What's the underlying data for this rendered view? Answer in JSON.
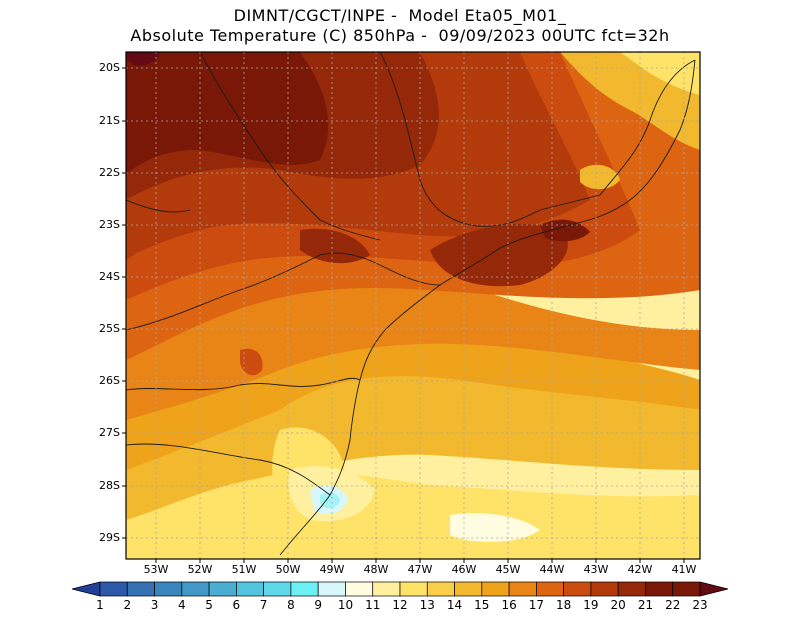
{
  "title": {
    "line1": "DIMNT/CGCT/INPE -  Model Eta05_M01_",
    "line2": "Absolute Temperature (C) 850hPa -  09/09/2023 00UTC fct=32h"
  },
  "map": {
    "lat_labels": [
      "20S",
      "21S",
      "22S",
      "23S",
      "24S",
      "25S",
      "26S",
      "27S",
      "28S",
      "29S"
    ],
    "lon_labels": [
      "53W",
      "52W",
      "51W",
      "50W",
      "49W",
      "48W",
      "47W",
      "46W",
      "45W",
      "44W",
      "43W",
      "42W",
      "41W"
    ]
  },
  "colorbar": {
    "labels": [
      "1",
      "2",
      "3",
      "4",
      "5",
      "6",
      "7",
      "8",
      "9",
      "10",
      "11",
      "12",
      "13",
      "14",
      "15",
      "16",
      "17",
      "18",
      "19",
      "20",
      "21",
      "22",
      "23"
    ],
    "colors": [
      "#1f3f99",
      "#2b58a8",
      "#3570b3",
      "#3b85bd",
      "#4399c6",
      "#4aaed2",
      "#53c4de",
      "#5fd8ea",
      "#6cf0f4",
      "#d8f7fb",
      "#fffce0",
      "#fff0a0",
      "#ffe268",
      "#f9cf4a",
      "#f3b92e",
      "#eea31b",
      "#e88516",
      "#dd6512",
      "#cc4b0e",
      "#b33a0b",
      "#96280a",
      "#7a1808",
      "#640a14"
    ]
  }
}
